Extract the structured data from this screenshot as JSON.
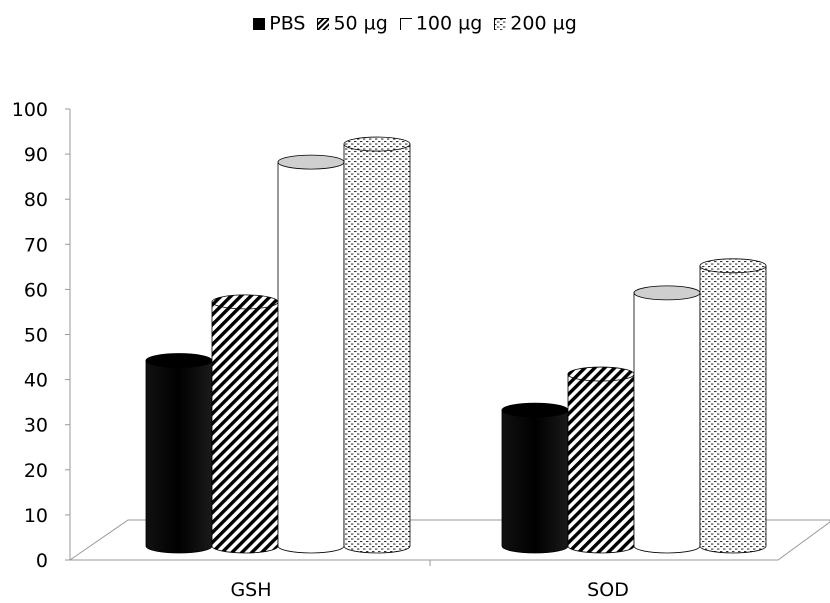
{
  "chart_data": {
    "type": "bar",
    "style": "3d-cylinder",
    "title": "",
    "xlabel": "",
    "ylabel": "",
    "categories": [
      "GSH",
      "SOD"
    ],
    "ylim": [
      0,
      100
    ],
    "yticks": [
      "0",
      "10",
      "20",
      "30",
      "40",
      "50",
      "60",
      "70",
      "80",
      "90",
      "100"
    ],
    "legend_position": "top-center",
    "grid": false,
    "series": [
      {
        "name": "PBS",
        "values": [
          46,
          35
        ],
        "fill": "solid-black",
        "color": "#000000"
      },
      {
        "name": "50 µg",
        "values": [
          59,
          43
        ],
        "fill": "diagonal-hatch",
        "color": "#000000"
      },
      {
        "name": "100 µg",
        "values": [
          90,
          61
        ],
        "fill": "white",
        "color": "#ffffff"
      },
      {
        "name": "200 µg",
        "values": [
          94,
          67
        ],
        "fill": "dotted",
        "color": "#ffffff"
      }
    ]
  }
}
